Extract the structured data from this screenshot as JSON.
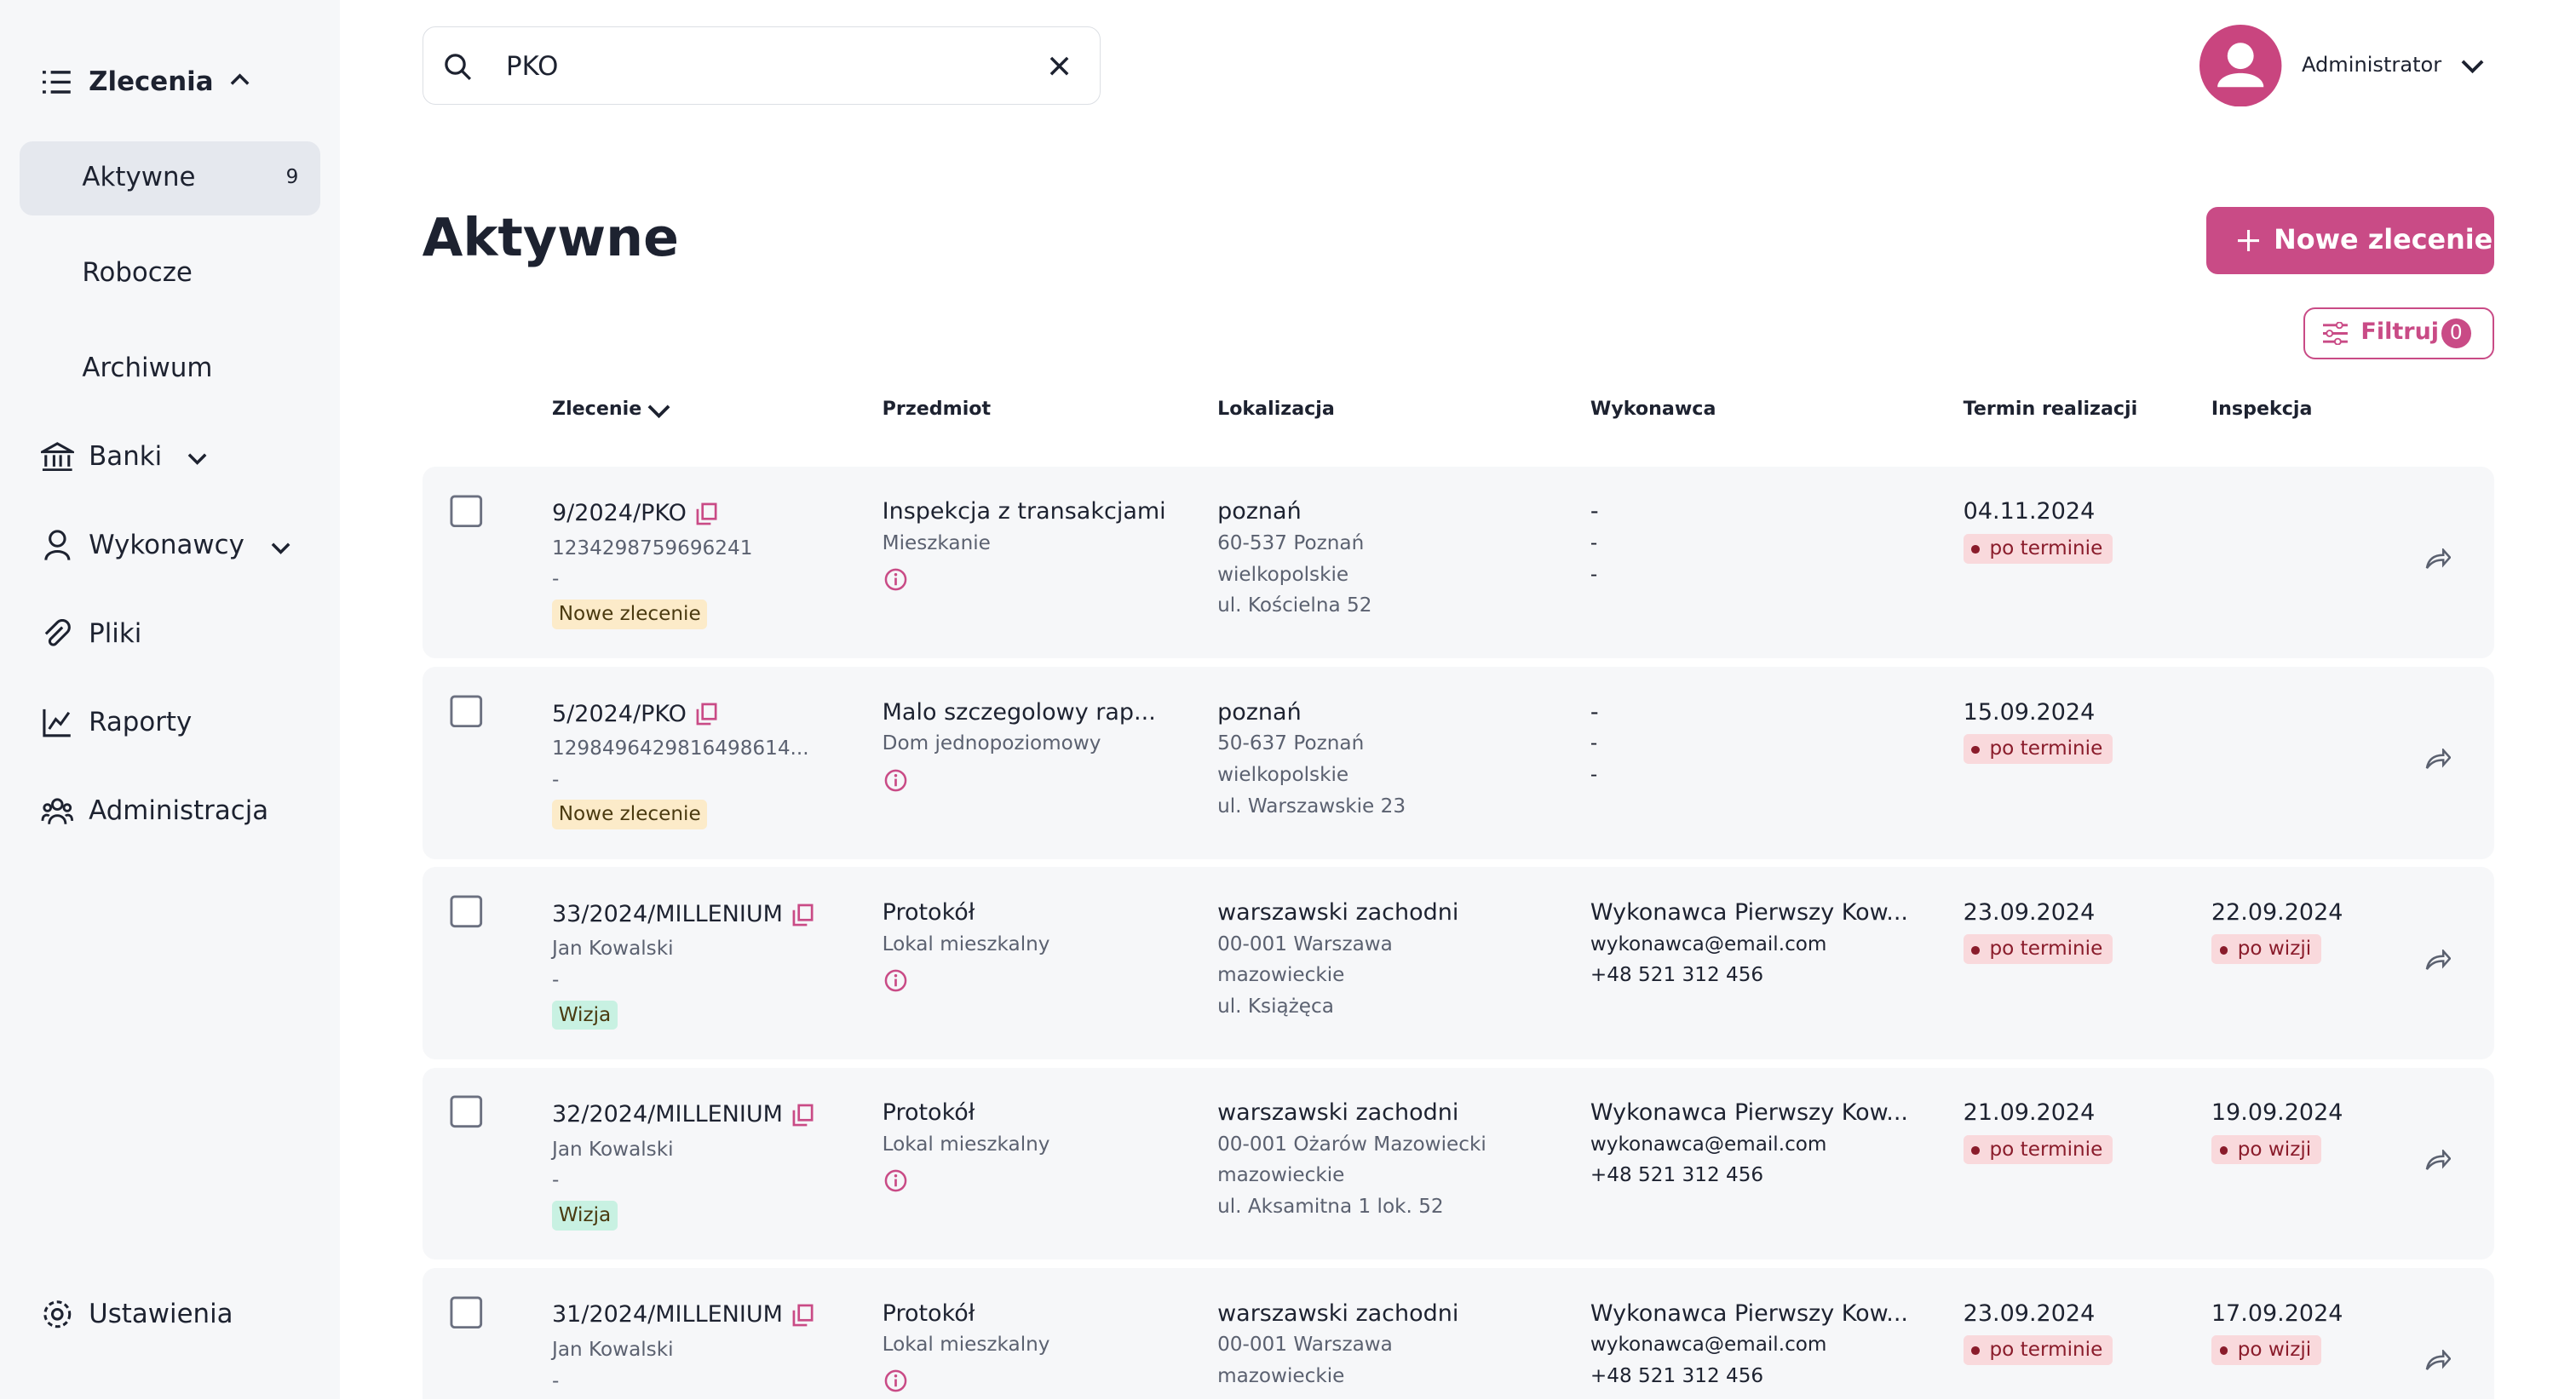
{
  "sidebar": {
    "section": "Zlecenia",
    "items": [
      {
        "label": "Aktywne",
        "count": 9
      },
      {
        "label": "Robocze"
      },
      {
        "label": "Archiwum"
      }
    ],
    "groups": [
      "Banki",
      "Wykonawcy"
    ],
    "links": [
      "Pliki",
      "Raporty",
      "Administracja"
    ],
    "settings": "Ustawienia"
  },
  "header": {
    "search": "PKO",
    "user": "Administrator"
  },
  "page": {
    "title": "Aktywne",
    "new_button": "Nowe zlecenie",
    "filter": "Filtruj",
    "filter_count": 0
  },
  "table": {
    "columns": [
      "Zlecenie",
      "Przedmiot",
      "Lokalizacja",
      "Wykonawca",
      "Termin realizacji",
      "Inspekcja"
    ],
    "rows": [
      {
        "id": "9/2024/PKO",
        "number": "1234298759696241",
        "dash": "-",
        "tag": "Nowe zlecenie",
        "tag_color": "#fcebc9",
        "subject": "Inspekcja z transakcjami",
        "subject_type": "Mieszkanie",
        "location": [
          "poznań",
          "60-537 Poznań",
          "wielkopolskie",
          "ul. Kościelna 52"
        ],
        "contractor": [
          "-",
          "-",
          "-"
        ],
        "deadline": "04.11.2024",
        "deadline_status": "po terminie"
      },
      {
        "id": "5/2024/PKO",
        "number": "1298496429816498614...",
        "dash": "-",
        "tag": "Nowe zlecenie",
        "tag_color": "#fcebc9",
        "subject": "Malo szczegolowy rap...",
        "subject_type": "Dom jednopoziomowy",
        "location": [
          "poznań",
          "50-637 Poznań",
          "wielkopolskie",
          "ul. Warszawskie 23"
        ],
        "contractor": [
          "-",
          "-",
          "-"
        ],
        "deadline": "15.09.2024",
        "deadline_status": "po terminie"
      },
      {
        "id": "33/2024/MILLENIUM",
        "number": "Jan Kowalski",
        "dash": "-",
        "tag": "Wizja",
        "tag_color": "#c8f1e2",
        "subject": "Protokół",
        "subject_type": "Lokal mieszkalny",
        "location": [
          "warszawski zachodni",
          "00-001 Warszawa",
          "mazowieckie",
          "ul. Książęca"
        ],
        "contractor": [
          "Wykonawca Pierwszy Kow...",
          "wykonawca@email.com",
          "+48 521 312 456"
        ],
        "deadline": "23.09.2024",
        "deadline_status": "po terminie",
        "inspection": "22.09.2024",
        "inspection_status": "po wizji"
      },
      {
        "id": "32/2024/MILLENIUM",
        "number": "Jan Kowalski",
        "dash": "-",
        "tag": "Wizja",
        "tag_color": "#c8f1e2",
        "subject": "Protokół",
        "subject_type": "Lokal mieszkalny",
        "location": [
          "warszawski zachodni",
          "00-001 Ożarów Mazowiecki",
          "mazowieckie",
          "ul. Aksamitna 1 lok. 52"
        ],
        "contractor": [
          "Wykonawca Pierwszy Kow...",
          "wykonawca@email.com",
          "+48 521 312 456"
        ],
        "deadline": "21.09.2024",
        "deadline_status": "po terminie",
        "inspection": "19.09.2024",
        "inspection_status": "po wizji"
      },
      {
        "id": "31/2024/MILLENIUM",
        "number": "Jan Kowalski",
        "dash": "-",
        "subject": "Protokół",
        "subject_type": "Lokal mieszkalny",
        "location": [
          "warszawski zachodni",
          "00-001 Warszawa",
          "mazowieckie"
        ],
        "contractor": [
          "Wykonawca Pierwszy Kow...",
          "wykonawca@email.com",
          "+48 521 312 456"
        ],
        "deadline": "23.09.2024",
        "deadline_status": "po terminie",
        "inspection": "17.09.2024",
        "inspection_status": "po wizji"
      }
    ]
  }
}
